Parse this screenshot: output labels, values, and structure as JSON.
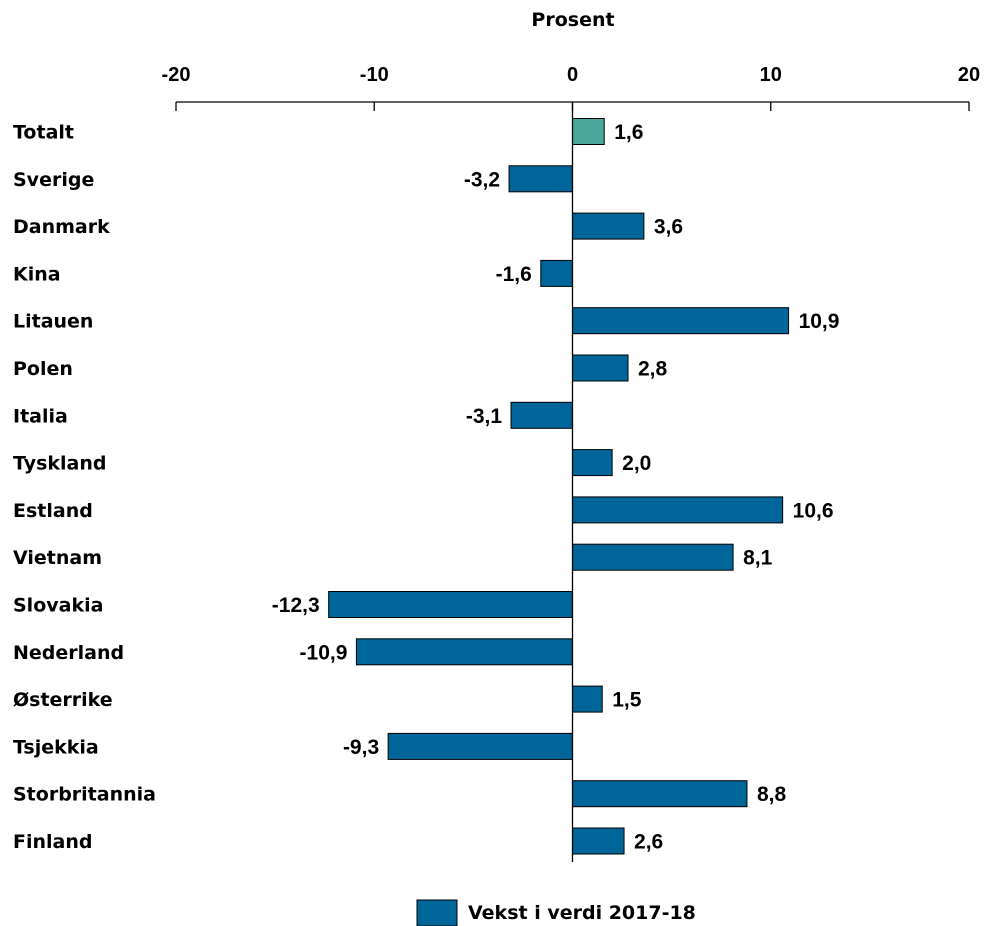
{
  "chart_data": {
    "type": "bar",
    "orientation": "horizontal",
    "xlabel": "Prosent",
    "xlim": [
      -20,
      20
    ],
    "xticks": [
      "-20",
      "-10",
      "0",
      "10",
      "20"
    ],
    "xtick_values": [
      -20,
      -10,
      0,
      10,
      20
    ],
    "axis_position": "top",
    "grid": false,
    "legend_position": "bottom-center",
    "categories": [
      "Totalt",
      "Sverige",
      "Danmark",
      "Kina",
      "Litauen",
      "Polen",
      "Italia",
      "Tyskland",
      "Estland",
      "Vietnam",
      "Slovakia",
      "Nederland",
      "Østerrike",
      "Tsjekkia",
      "Storbritannia",
      "Finland"
    ],
    "series": [
      {
        "name": "Vekst i verdi 2017-18",
        "values": [
          1.6,
          -3.2,
          3.6,
          -1.6,
          10.9,
          2.8,
          -3.1,
          2.0,
          10.6,
          8.1,
          -12.3,
          -10.9,
          1.5,
          -9.3,
          8.8,
          2.6
        ],
        "data_labels": [
          "1,6",
          "-3,2",
          "3,6",
          "-1,6",
          "10,9",
          "2,8",
          "-3,1",
          "2,0",
          "10,6",
          "8,1",
          "-12,3",
          "-10,9",
          "1,5",
          "-9,3",
          "8,8",
          "2,6"
        ],
        "color": "#006699",
        "highlight_color": "#4aa89a",
        "highlight_category": "Totalt"
      }
    ]
  }
}
